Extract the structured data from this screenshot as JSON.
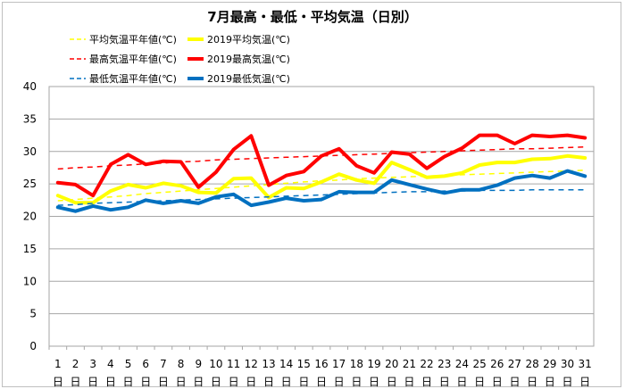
{
  "chart_data": {
    "type": "line",
    "title": "7月最高・最低・平均気温（日別）",
    "xlabel": "",
    "ylabel": "",
    "ylim": [
      0,
      40
    ],
    "yticks": [
      0,
      5,
      10,
      15,
      20,
      25,
      30,
      35,
      40
    ],
    "categories": [
      "1",
      "2",
      "3",
      "4",
      "5",
      "6",
      "7",
      "8",
      "9",
      "10",
      "11",
      "12",
      "13",
      "14",
      "15",
      "16",
      "17",
      "18",
      "19",
      "20",
      "21",
      "22",
      "23",
      "24",
      "25",
      "26",
      "27",
      "28",
      "29",
      "30",
      "31"
    ],
    "day_suffix": "日",
    "grid": true,
    "legend_position": "top-left",
    "series": [
      {
        "name": "平均気温平年値(℃)",
        "color": "#ffff00",
        "style": "dashed",
        "width": 1.5,
        "values": [
          22.4,
          22.6,
          22.8,
          23.0,
          23.2,
          23.5,
          23.7,
          23.9,
          24.1,
          24.3,
          24.5,
          24.7,
          24.9,
          25.1,
          25.3,
          25.5,
          25.6,
          25.8,
          25.9,
          26.0,
          26.1,
          26.2,
          26.3,
          26.4,
          26.5,
          26.6,
          26.7,
          26.8,
          26.9,
          27.0,
          27.1
        ]
      },
      {
        "name": "2019平均気温(℃)",
        "color": "#ffff00",
        "style": "solid",
        "width": 4,
        "values": [
          23.2,
          22.1,
          22.1,
          23.9,
          24.9,
          24.4,
          25.1,
          24.7,
          23.7,
          23.6,
          25.8,
          25.9,
          22.9,
          24.4,
          24.3,
          25.3,
          26.5,
          25.6,
          25.1,
          28.3,
          27.2,
          26.0,
          26.2,
          26.7,
          27.9,
          28.3,
          28.3,
          28.8,
          28.9,
          29.3,
          29.0
        ]
      },
      {
        "name": "最高気温平年値(℃)",
        "color": "#ff0000",
        "style": "dashed",
        "width": 1.5,
        "values": [
          27.3,
          27.5,
          27.6,
          27.8,
          27.9,
          28.1,
          28.2,
          28.4,
          28.5,
          28.7,
          28.8,
          28.9,
          29.0,
          29.1,
          29.2,
          29.3,
          29.4,
          29.5,
          29.6,
          29.7,
          29.8,
          29.9,
          30.0,
          30.1,
          30.2,
          30.3,
          30.4,
          30.4,
          30.5,
          30.6,
          30.7
        ]
      },
      {
        "name": "2019最高気温(℃)",
        "color": "#ff0000",
        "style": "solid",
        "width": 4,
        "values": [
          25.2,
          24.9,
          23.2,
          28.0,
          29.5,
          28.0,
          28.5,
          28.4,
          24.5,
          26.8,
          30.3,
          32.4,
          24.8,
          26.3,
          26.9,
          29.3,
          30.4,
          27.8,
          26.7,
          29.9,
          29.6,
          27.4,
          29.2,
          30.5,
          32.5,
          32.5,
          31.2,
          32.5,
          32.3,
          32.5,
          32.1
        ]
      },
      {
        "name": "最低気温平年値(℃)",
        "color": "#0070c0",
        "style": "dashed",
        "width": 1.5,
        "values": [
          21.7,
          21.8,
          22.0,
          22.1,
          22.2,
          22.3,
          22.4,
          22.5,
          22.6,
          22.7,
          22.8,
          22.9,
          23.0,
          23.1,
          23.2,
          23.3,
          23.4,
          23.5,
          23.6,
          23.7,
          23.8,
          23.8,
          23.9,
          23.9,
          24.0,
          24.0,
          24.0,
          24.1,
          24.1,
          24.1,
          24.1
        ]
      },
      {
        "name": "2019最低気温(℃)",
        "color": "#0070c0",
        "style": "solid",
        "width": 4,
        "values": [
          21.4,
          20.8,
          21.6,
          21.0,
          21.4,
          22.5,
          22.0,
          22.4,
          22.0,
          23.0,
          23.4,
          21.7,
          22.2,
          22.8,
          22.4,
          22.6,
          23.8,
          23.7,
          23.7,
          25.6,
          24.9,
          24.2,
          23.6,
          24.1,
          24.1,
          24.8,
          25.9,
          26.3,
          25.9,
          27.0,
          26.2
        ]
      }
    ]
  }
}
